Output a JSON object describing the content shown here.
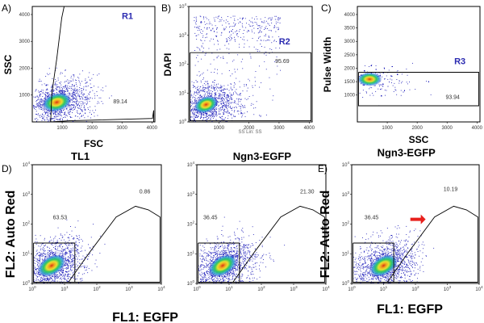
{
  "chart_data": [
    {
      "panel": "A)",
      "type": "scatter",
      "xlabel": "FSC",
      "ylabel": "SSC",
      "x_ticks": [
        "1000",
        "2000",
        "3000",
        "4000"
      ],
      "y_ticks": [
        "1000",
        "2000",
        "3000",
        "4000"
      ],
      "xlim": [
        0,
        4100
      ],
      "ylim": [
        0,
        4300
      ],
      "scale": "linear",
      "gates": [
        {
          "name": "R1",
          "percent": "89.14"
        }
      ]
    },
    {
      "panel": "B)",
      "type": "scatter",
      "xlabel": "SS Lin: SS",
      "ylabel": "DAPI",
      "x_ticks": [
        "1000",
        "2000",
        "3000",
        "4000"
      ],
      "y_ticks": [
        "10^0",
        "10^1",
        "10^2",
        "10^3",
        "10^4"
      ],
      "xlim": [
        0,
        4100
      ],
      "ylim": [
        0,
        4
      ],
      "scale": "x-linear, y-log",
      "gates": [
        {
          "name": "R2",
          "percent": "95.69"
        }
      ]
    },
    {
      "panel": "C)",
      "type": "scatter",
      "xlabel": "SSC",
      "ylabel": "Pulse Width",
      "x_ticks": [
        "1000",
        "2000",
        "3000",
        "4000"
      ],
      "y_ticks": [
        "1000",
        "1500",
        "2000",
        "2500",
        "3000",
        "3500",
        "4000"
      ],
      "xlim": [
        0,
        4100
      ],
      "ylim": [
        0,
        4300
      ],
      "scale": "linear",
      "gates": [
        {
          "name": "R3",
          "percent": "93.94"
        }
      ]
    },
    {
      "panel": "D)",
      "type": "scatter",
      "title": "TL1",
      "xlabel": "FL1: EGFP",
      "ylabel": "FL2: Auto Red",
      "x_ticks": [
        "10^0",
        "10^1",
        "10^2",
        "10^3",
        "10^4"
      ],
      "y_ticks": [
        "10^0",
        "10^1",
        "10^2",
        "10^3",
        "10^4"
      ],
      "xlim": [
        0,
        4
      ],
      "ylim": [
        0,
        4
      ],
      "scale": "log",
      "gates": [
        {
          "percent": "63.53"
        },
        {
          "percent": "0.86"
        }
      ]
    },
    {
      "panel": "",
      "type": "scatter",
      "title": "Ngn3-EGFP",
      "x_ticks": [
        "10^0",
        "10^1",
        "10^2",
        "10^3",
        "10^4"
      ],
      "y_ticks": [
        "10^0",
        "10^1",
        "10^2",
        "10^3",
        "10^4"
      ],
      "xlim": [
        0,
        4
      ],
      "ylim": [
        0,
        4
      ],
      "scale": "log",
      "gates": [
        {
          "percent": "36.45"
        },
        {
          "percent": "21.30"
        }
      ]
    },
    {
      "panel": "E)",
      "type": "scatter",
      "title": "Ngn3-EGFP",
      "xlabel": "FL1: EGFP",
      "ylabel": "FL2: Auto Red",
      "x_ticks": [
        "10^0",
        "10^1",
        "10^2",
        "10^3",
        "10^4"
      ],
      "y_ticks": [
        "10^0",
        "10^1",
        "10^2",
        "10^3",
        "10^4"
      ],
      "xlim": [
        0,
        4
      ],
      "ylim": [
        0,
        4
      ],
      "scale": "log",
      "gates": [
        {
          "percent": "36.45"
        },
        {
          "percent": "10.19"
        }
      ]
    }
  ],
  "colors": {
    "gate_label": "#2a2ab0",
    "arrow": "#e8201c",
    "density_low": "#2020c8",
    "density_high": "#d83010"
  }
}
